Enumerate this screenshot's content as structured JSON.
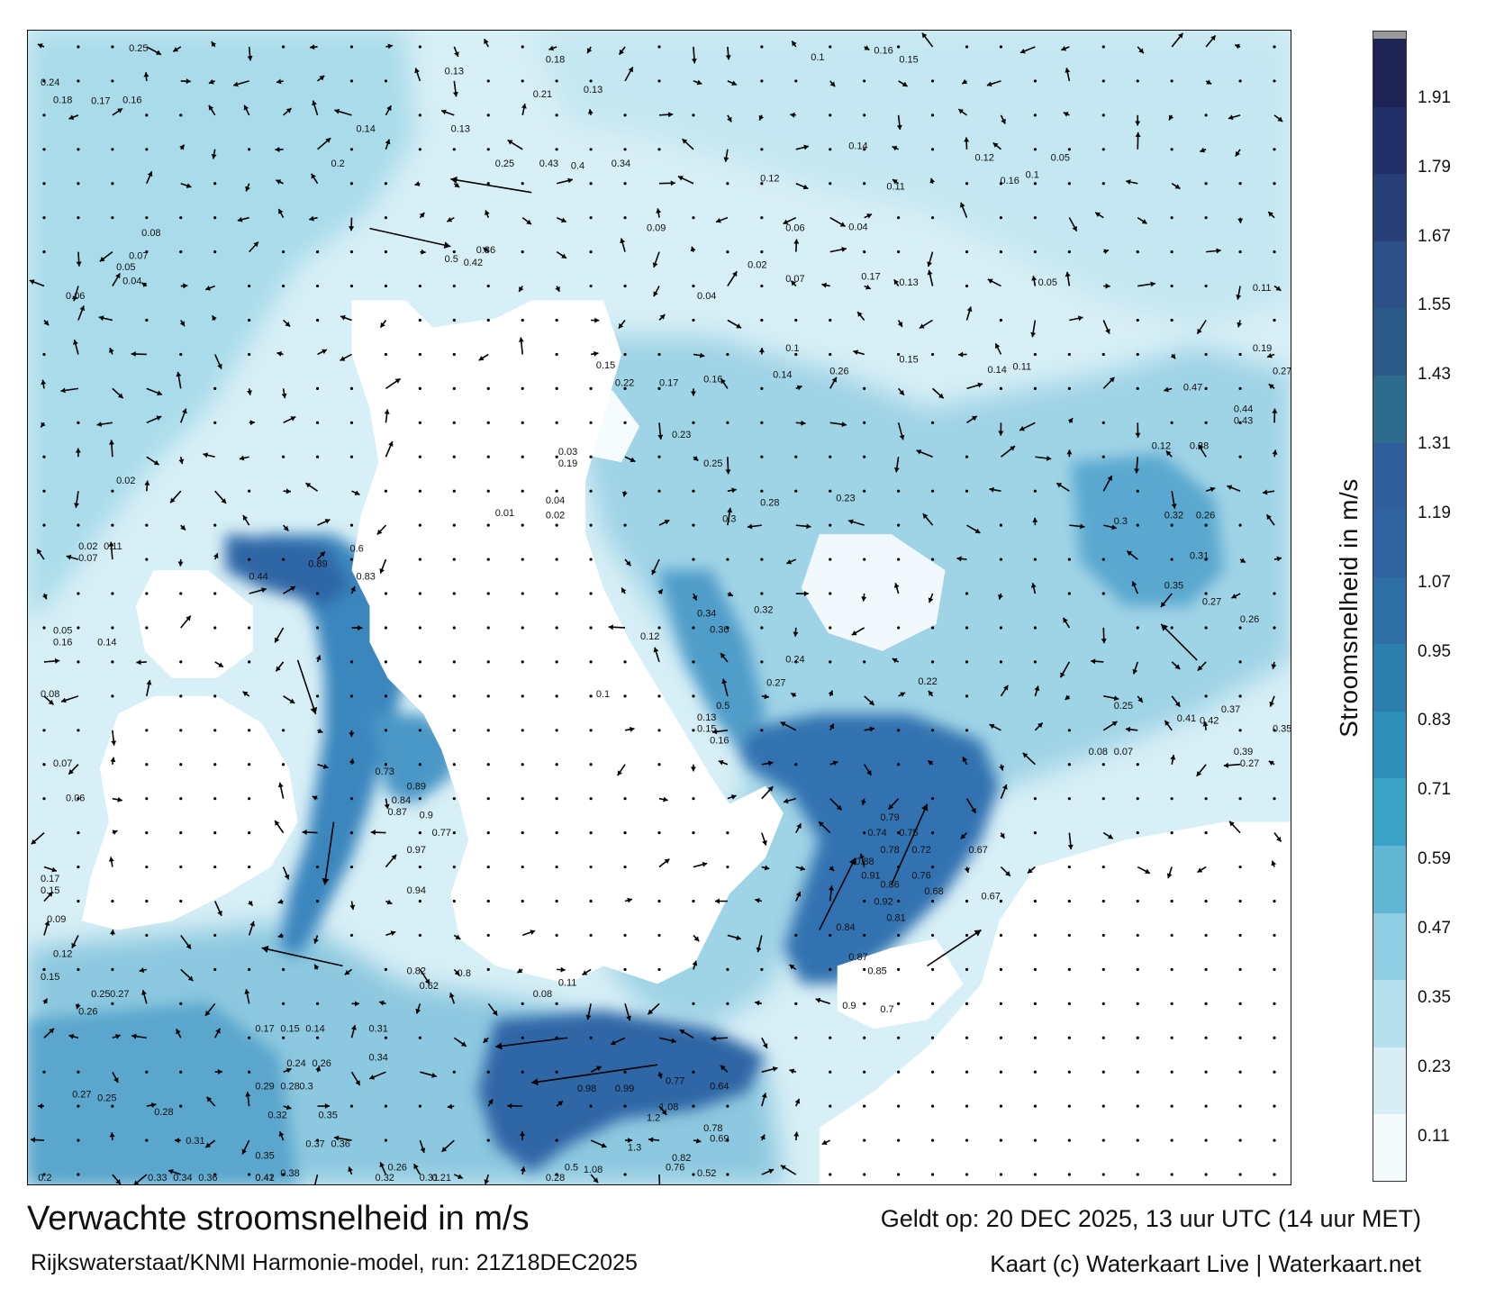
{
  "title": "Verwachte stroomsnelheid in m/s",
  "subtitle": "Rijkswaterstaat/KNMI Harmonie-model, run: 21Z18DEC2025",
  "valid_time": "Geldt op: 20 DEC 2025, 13 uur UTC (14 uur MET)",
  "credit": "Kaart (c) Waterkaart Live | Waterkaart.net",
  "colorbar": {
    "label": "Stroomsnelheid in m/s",
    "ticks": [
      "0.11",
      "0.23",
      "0.35",
      "0.47",
      "0.59",
      "0.71",
      "0.83",
      "0.95",
      "1.07",
      "1.19",
      "1.31",
      "1.43",
      "1.55",
      "1.67",
      "1.79",
      "1.91"
    ],
    "colors": [
      "#f4fafc",
      "#d8eef5",
      "#b5e0ec",
      "#8fcde2",
      "#61b7d3",
      "#3aa2c6",
      "#2d8fb8",
      "#2b7fad",
      "#2e6fa6",
      "#2f62a0",
      "#2e5f9c",
      "#2d6c8c",
      "#2c5a88",
      "#2b4f86",
      "#293f77",
      "#222f68",
      "#1d2352",
      "#9a9a9a"
    ]
  },
  "map": {
    "land_color": "#ffffff",
    "water_color": "#b9e2ee",
    "deep_color": "#2f6aa7",
    "map_labels": [
      {
        "text": "0.25",
        "lx": 0.08,
        "ly": 0.01
      },
      {
        "text": "0.24",
        "lx": 0.01,
        "ly": 0.04
      },
      {
        "text": "0.18",
        "lx": 0.02,
        "ly": 0.055
      },
      {
        "text": "0.17",
        "lx": 0.05,
        "ly": 0.056
      },
      {
        "text": "0.16",
        "lx": 0.075,
        "ly": 0.055
      },
      {
        "text": "0.13",
        "lx": 0.33,
        "ly": 0.03
      },
      {
        "text": "0.18",
        "lx": 0.41,
        "ly": 0.02
      },
      {
        "text": "0.21",
        "lx": 0.4,
        "ly": 0.05
      },
      {
        "text": "0.13",
        "lx": 0.44,
        "ly": 0.046
      },
      {
        "text": "0.1",
        "lx": 0.62,
        "ly": 0.018
      },
      {
        "text": "0.16",
        "lx": 0.67,
        "ly": 0.012
      },
      {
        "text": "0.15",
        "lx": 0.69,
        "ly": 0.02
      },
      {
        "text": "0.13",
        "lx": 0.335,
        "ly": 0.08
      },
      {
        "text": "0.14",
        "lx": 0.26,
        "ly": 0.08
      },
      {
        "text": "0.2",
        "lx": 0.24,
        "ly": 0.11
      },
      {
        "text": "0.25",
        "lx": 0.37,
        "ly": 0.11
      },
      {
        "text": "0.43",
        "lx": 0.405,
        "ly": 0.11
      },
      {
        "text": "0.4",
        "lx": 0.43,
        "ly": 0.112
      },
      {
        "text": "0.34",
        "lx": 0.462,
        "ly": 0.11
      },
      {
        "text": "0.14",
        "lx": 0.65,
        "ly": 0.095
      },
      {
        "text": "0.12",
        "lx": 0.75,
        "ly": 0.105
      },
      {
        "text": "0.16",
        "lx": 0.77,
        "ly": 0.125
      },
      {
        "text": "0.1",
        "lx": 0.79,
        "ly": 0.12
      },
      {
        "text": "0.05",
        "lx": 0.81,
        "ly": 0.105
      },
      {
        "text": "0.12",
        "lx": 0.58,
        "ly": 0.123
      },
      {
        "text": "0.11",
        "lx": 0.68,
        "ly": 0.13
      },
      {
        "text": "0.09",
        "lx": 0.49,
        "ly": 0.166
      },
      {
        "text": "0.06",
        "lx": 0.6,
        "ly": 0.166
      },
      {
        "text": "0.04",
        "lx": 0.65,
        "ly": 0.165
      },
      {
        "text": "0.5",
        "lx": 0.33,
        "ly": 0.193
      },
      {
        "text": "0.42",
        "lx": 0.345,
        "ly": 0.196
      },
      {
        "text": "0.36",
        "lx": 0.355,
        "ly": 0.185
      },
      {
        "text": "0.02",
        "lx": 0.57,
        "ly": 0.198
      },
      {
        "text": "0.04",
        "lx": 0.53,
        "ly": 0.225
      },
      {
        "text": "0.07",
        "lx": 0.6,
        "ly": 0.21
      },
      {
        "text": "0.17",
        "lx": 0.66,
        "ly": 0.208
      },
      {
        "text": "0.13",
        "lx": 0.69,
        "ly": 0.213
      },
      {
        "text": "0.05",
        "lx": 0.8,
        "ly": 0.213
      },
      {
        "text": "0.11",
        "lx": 0.97,
        "ly": 0.218
      },
      {
        "text": "0.1",
        "lx": 0.6,
        "ly": 0.27
      },
      {
        "text": "0.15",
        "lx": 0.45,
        "ly": 0.285
      },
      {
        "text": "0.22",
        "lx": 0.465,
        "ly": 0.3
      },
      {
        "text": "0.17",
        "lx": 0.5,
        "ly": 0.3
      },
      {
        "text": "0.16",
        "lx": 0.535,
        "ly": 0.297
      },
      {
        "text": "0.14",
        "lx": 0.59,
        "ly": 0.293
      },
      {
        "text": "0.26",
        "lx": 0.635,
        "ly": 0.29
      },
      {
        "text": "0.15",
        "lx": 0.69,
        "ly": 0.28
      },
      {
        "text": "0.14",
        "lx": 0.76,
        "ly": 0.289
      },
      {
        "text": "0.11",
        "lx": 0.78,
        "ly": 0.286
      },
      {
        "text": "0.19",
        "lx": 0.97,
        "ly": 0.27
      },
      {
        "text": "0.27",
        "lx": 0.99,
        "ly": 0.29
      },
      {
        "text": "0.47",
        "lx": 0.915,
        "ly": 0.304
      },
      {
        "text": "0.23",
        "lx": 0.51,
        "ly": 0.345
      },
      {
        "text": "0.25",
        "lx": 0.535,
        "ly": 0.37
      },
      {
        "text": "0.28",
        "lx": 0.58,
        "ly": 0.404
      },
      {
        "text": "0.3",
        "lx": 0.55,
        "ly": 0.418
      },
      {
        "text": "0.23",
        "lx": 0.64,
        "ly": 0.4
      },
      {
        "text": "0.12",
        "lx": 0.89,
        "ly": 0.355
      },
      {
        "text": "0.44",
        "lx": 0.955,
        "ly": 0.323
      },
      {
        "text": "0.43",
        "lx": 0.955,
        "ly": 0.333
      },
      {
        "text": "0.38",
        "lx": 0.92,
        "ly": 0.355
      },
      {
        "text": "0.3",
        "lx": 0.86,
        "ly": 0.42
      },
      {
        "text": "0.32",
        "lx": 0.9,
        "ly": 0.415
      },
      {
        "text": "0.26",
        "lx": 0.925,
        "ly": 0.415
      },
      {
        "text": "0.31",
        "lx": 0.92,
        "ly": 0.45
      },
      {
        "text": "0.35",
        "lx": 0.9,
        "ly": 0.476
      },
      {
        "text": "0.27",
        "lx": 0.93,
        "ly": 0.49
      },
      {
        "text": "0.26",
        "lx": 0.96,
        "ly": 0.505
      },
      {
        "text": "0.34",
        "lx": 0.53,
        "ly": 0.5
      },
      {
        "text": "0.32",
        "lx": 0.575,
        "ly": 0.497
      },
      {
        "text": "0.36",
        "lx": 0.54,
        "ly": 0.514
      },
      {
        "text": "0.24",
        "lx": 0.6,
        "ly": 0.54
      },
      {
        "text": "0.27",
        "lx": 0.585,
        "ly": 0.56
      },
      {
        "text": "0.5",
        "lx": 0.545,
        "ly": 0.58
      },
      {
        "text": "0.22",
        "lx": 0.705,
        "ly": 0.559
      },
      {
        "text": "0.25",
        "lx": 0.86,
        "ly": 0.58
      },
      {
        "text": "0.41",
        "lx": 0.91,
        "ly": 0.591
      },
      {
        "text": "0.42",
        "lx": 0.928,
        "ly": 0.593
      },
      {
        "text": "0.37",
        "lx": 0.945,
        "ly": 0.583
      },
      {
        "text": "0.35",
        "lx": 0.99,
        "ly": 0.6
      },
      {
        "text": "0.6",
        "lx": 0.255,
        "ly": 0.444
      },
      {
        "text": "0.89",
        "lx": 0.222,
        "ly": 0.457
      },
      {
        "text": "0.83",
        "lx": 0.26,
        "ly": 0.468
      },
      {
        "text": "0.44",
        "lx": 0.175,
        "ly": 0.468
      },
      {
        "text": "0.73",
        "lx": 0.275,
        "ly": 0.637
      },
      {
        "text": "0.89",
        "lx": 0.3,
        "ly": 0.65
      },
      {
        "text": "0.84",
        "lx": 0.288,
        "ly": 0.662
      },
      {
        "text": "0.87",
        "lx": 0.285,
        "ly": 0.672
      },
      {
        "text": "0.9",
        "lx": 0.31,
        "ly": 0.675
      },
      {
        "text": "0.77",
        "lx": 0.32,
        "ly": 0.69
      },
      {
        "text": "0.97",
        "lx": 0.3,
        "ly": 0.705
      },
      {
        "text": "0.94",
        "lx": 0.3,
        "ly": 0.74
      },
      {
        "text": "0.82",
        "lx": 0.3,
        "ly": 0.81
      },
      {
        "text": "0.62",
        "lx": 0.31,
        "ly": 0.823
      },
      {
        "text": "0.8",
        "lx": 0.34,
        "ly": 0.812
      },
      {
        "text": "0.79",
        "lx": 0.675,
        "ly": 0.677
      },
      {
        "text": "0.74",
        "lx": 0.665,
        "ly": 0.69
      },
      {
        "text": "0.75",
        "lx": 0.69,
        "ly": 0.69
      },
      {
        "text": "0.78",
        "lx": 0.675,
        "ly": 0.705
      },
      {
        "text": "0.72",
        "lx": 0.7,
        "ly": 0.705
      },
      {
        "text": "0.67",
        "lx": 0.745,
        "ly": 0.705
      },
      {
        "text": "0.88",
        "lx": 0.655,
        "ly": 0.715
      },
      {
        "text": "0.91",
        "lx": 0.66,
        "ly": 0.727
      },
      {
        "text": "0.86",
        "lx": 0.675,
        "ly": 0.735
      },
      {
        "text": "0.76",
        "lx": 0.7,
        "ly": 0.727
      },
      {
        "text": "0.68",
        "lx": 0.71,
        "ly": 0.741
      },
      {
        "text": "0.67",
        "lx": 0.755,
        "ly": 0.745
      },
      {
        "text": "0.92",
        "lx": 0.67,
        "ly": 0.75
      },
      {
        "text": "0.81",
        "lx": 0.68,
        "ly": 0.764
      },
      {
        "text": "0.84",
        "lx": 0.64,
        "ly": 0.772
      },
      {
        "text": "0.87",
        "lx": 0.65,
        "ly": 0.798
      },
      {
        "text": "0.85",
        "lx": 0.665,
        "ly": 0.81
      },
      {
        "text": "0.9",
        "lx": 0.645,
        "ly": 0.84
      },
      {
        "text": "0.7",
        "lx": 0.675,
        "ly": 0.843
      },
      {
        "text": "0.98",
        "lx": 0.435,
        "ly": 0.912
      },
      {
        "text": "0.99",
        "lx": 0.465,
        "ly": 0.912
      },
      {
        "text": "1.2",
        "lx": 0.49,
        "ly": 0.937
      },
      {
        "text": "1.08",
        "lx": 0.5,
        "ly": 0.928
      },
      {
        "text": "0.77",
        "lx": 0.505,
        "ly": 0.905
      },
      {
        "text": "0.64",
        "lx": 0.54,
        "ly": 0.91
      },
      {
        "text": "0.78",
        "lx": 0.535,
        "ly": 0.946
      },
      {
        "text": "0.69",
        "lx": 0.54,
        "ly": 0.955
      },
      {
        "text": "1.3",
        "lx": 0.475,
        "ly": 0.963
      },
      {
        "text": "1.08",
        "lx": 0.44,
        "ly": 0.982
      },
      {
        "text": "0.82",
        "lx": 0.51,
        "ly": 0.972
      },
      {
        "text": "0.76",
        "lx": 0.505,
        "ly": 0.98
      },
      {
        "text": "0.52",
        "lx": 0.53,
        "ly": 0.985
      },
      {
        "text": "0.5",
        "lx": 0.425,
        "ly": 0.98
      },
      {
        "text": "0.28",
        "lx": 0.41,
        "ly": 1.005
      },
      {
        "text": "0.11",
        "lx": 0.42,
        "ly": 0.82
      },
      {
        "text": "0.08",
        "lx": 0.4,
        "ly": 0.83
      },
      {
        "text": "0.26",
        "lx": 0.04,
        "ly": 0.845
      },
      {
        "text": "0.25",
        "lx": 0.05,
        "ly": 0.83
      },
      {
        "text": "0.27",
        "lx": 0.065,
        "ly": 0.83
      },
      {
        "text": "0.27",
        "lx": 0.035,
        "ly": 0.917
      },
      {
        "text": "0.25",
        "lx": 0.055,
        "ly": 0.92
      },
      {
        "text": "0.28",
        "lx": 0.1,
        "ly": 0.932
      },
      {
        "text": "0.31",
        "lx": 0.125,
        "ly": 0.957
      },
      {
        "text": "0.36",
        "lx": 0.135,
        "ly": 0.998
      },
      {
        "text": "0.34",
        "lx": 0.115,
        "ly": 1.0
      },
      {
        "text": "0.33",
        "lx": 0.095,
        "ly": 1.002
      },
      {
        "text": "0.2",
        "lx": 0.008,
        "ly": 1.014
      },
      {
        "text": "0.42",
        "lx": 0.18,
        "ly": 1.02
      },
      {
        "text": "0.41",
        "lx": 0.18,
        "ly": 1.01
      },
      {
        "text": "0.32",
        "lx": 0.275,
        "ly": 0.99
      },
      {
        "text": "0.26",
        "lx": 0.285,
        "ly": 0.98
      },
      {
        "text": "0.21",
        "lx": 0.32,
        "ly": 0.99
      },
      {
        "text": "0.31",
        "lx": 0.31,
        "ly": 1.005
      },
      {
        "text": "0.17",
        "lx": 0.18,
        "ly": 0.86
      },
      {
        "text": "0.15",
        "lx": 0.2,
        "ly": 0.86
      },
      {
        "text": "0.14",
        "lx": 0.22,
        "ly": 0.86
      },
      {
        "text": "0.31",
        "lx": 0.27,
        "ly": 0.86
      },
      {
        "text": "0.34",
        "lx": 0.27,
        "ly": 0.885
      },
      {
        "text": "0.35",
        "lx": 0.23,
        "ly": 0.935
      },
      {
        "text": "0.37",
        "lx": 0.22,
        "ly": 0.96
      },
      {
        "text": "0.36",
        "lx": 0.24,
        "ly": 0.96
      },
      {
        "text": "0.38",
        "lx": 0.2,
        "ly": 0.985
      },
      {
        "text": "0.35",
        "lx": 0.18,
        "ly": 0.97
      },
      {
        "text": "0.32",
        "lx": 0.19,
        "ly": 0.935
      },
      {
        "text": "0.29",
        "lx": 0.18,
        "ly": 0.91
      },
      {
        "text": "0.28",
        "lx": 0.2,
        "ly": 0.91
      },
      {
        "text": "0.3",
        "lx": 0.215,
        "ly": 0.91
      },
      {
        "text": "0.24",
        "lx": 0.205,
        "ly": 0.89
      },
      {
        "text": "0.26",
        "lx": 0.225,
        "ly": 0.89
      },
      {
        "text": "0.05",
        "lx": 0.02,
        "ly": 0.515
      },
      {
        "text": "0.16",
        "lx": 0.02,
        "ly": 0.525
      },
      {
        "text": "0.14",
        "lx": 0.055,
        "ly": 0.525
      },
      {
        "text": "0.08",
        "lx": 0.01,
        "ly": 0.57
      },
      {
        "text": "0.17",
        "lx": 0.01,
        "ly": 0.73
      },
      {
        "text": "0.15",
        "lx": 0.01,
        "ly": 0.74
      },
      {
        "text": "0.09",
        "lx": 0.015,
        "ly": 0.765
      },
      {
        "text": "0.12",
        "lx": 0.02,
        "ly": 0.795
      },
      {
        "text": "0.15",
        "lx": 0.01,
        "ly": 0.815
      },
      {
        "text": "0.06",
        "lx": 0.03,
        "ly": 0.66
      },
      {
        "text": "0.07",
        "lx": 0.02,
        "ly": 0.63
      },
      {
        "text": "0.06",
        "lx": 0.03,
        "ly": 0.225
      },
      {
        "text": "0.08",
        "lx": 0.09,
        "ly": 0.17
      },
      {
        "text": "0.07",
        "lx": 0.08,
        "ly": 0.19
      },
      {
        "text": "0.05",
        "lx": 0.07,
        "ly": 0.2
      },
      {
        "text": "0.04",
        "lx": 0.075,
        "ly": 0.212
      },
      {
        "text": "0.02",
        "lx": 0.07,
        "ly": 0.385
      },
      {
        "text": "0.02",
        "lx": 0.04,
        "ly": 0.442
      },
      {
        "text": "0.11",
        "lx": 0.06,
        "ly": 0.442
      },
      {
        "text": "0.07",
        "lx": 0.04,
        "ly": 0.452
      },
      {
        "text": "0.01",
        "lx": 0.37,
        "ly": 0.413
      },
      {
        "text": "0.02",
        "lx": 0.41,
        "ly": 0.415
      },
      {
        "text": "0.04",
        "lx": 0.41,
        "ly": 0.402
      },
      {
        "text": "0.03",
        "lx": 0.42,
        "ly": 0.36
      },
      {
        "text": "0.19",
        "lx": 0.42,
        "ly": 0.37
      },
      {
        "text": "0.1",
        "lx": 0.45,
        "ly": 0.57
      },
      {
        "text": "0.12",
        "lx": 0.485,
        "ly": 0.52
      },
      {
        "text": "0.13",
        "lx": 0.53,
        "ly": 0.59
      },
      {
        "text": "0.15",
        "lx": 0.53,
        "ly": 0.6
      },
      {
        "text": "0.16",
        "lx": 0.54,
        "ly": 0.61
      },
      {
        "text": "0.08",
        "lx": 0.84,
        "ly": 0.62
      },
      {
        "text": "0.07",
        "lx": 0.86,
        "ly": 0.62
      },
      {
        "text": "0.27",
        "lx": 0.96,
        "ly": 0.63
      },
      {
        "text": "0.39",
        "lx": 0.955,
        "ly": 0.62
      }
    ]
  }
}
